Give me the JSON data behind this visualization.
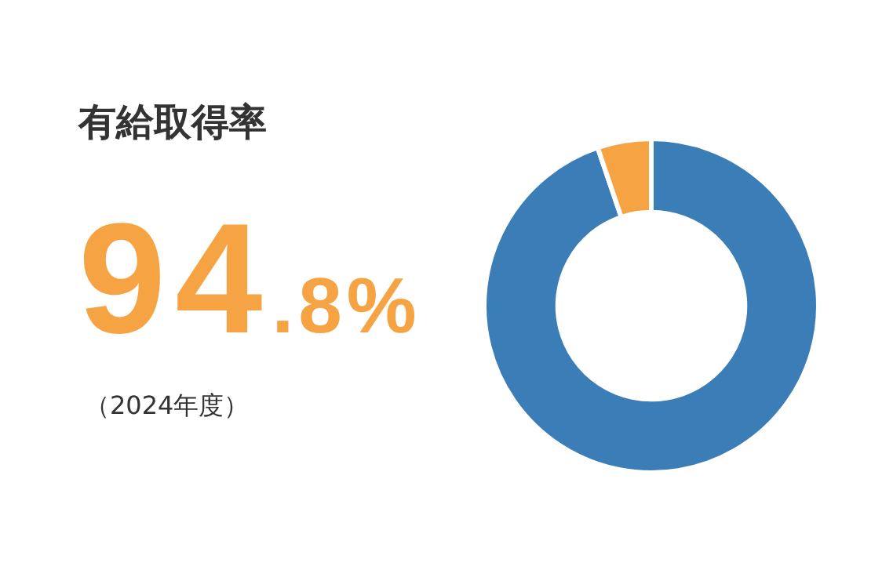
{
  "chart_data": {
    "type": "donut",
    "title": "有給取得率",
    "categories": [
      null,
      null
    ],
    "values": [
      94.8,
      5.2
    ],
    "colors": [
      "#3b7db6",
      "#f6a443"
    ],
    "annotations": [
      "94.8%",
      "（2024年度）"
    ]
  }
}
